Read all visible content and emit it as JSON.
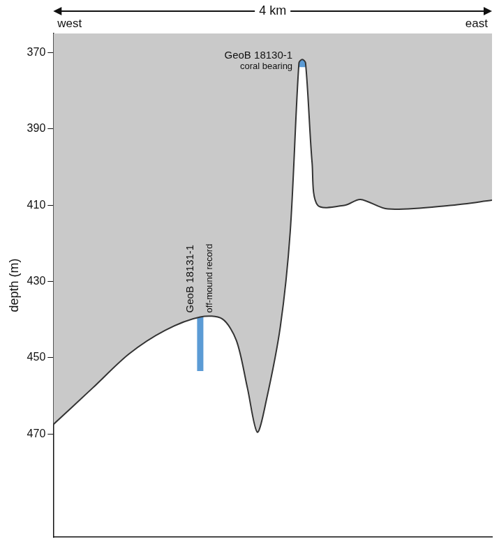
{
  "chart_data": {
    "type": "line",
    "span_label": "4 km",
    "left_label": "west",
    "right_label": "east",
    "y_label": "depth (m)",
    "x": [
      0,
      0.36,
      0.69,
      1.02,
      1.34,
      1.54,
      1.67,
      1.77,
      1.86,
      1.94,
      2.07,
      2.16,
      2.24,
      2.27,
      2.3,
      2.36,
      2.41,
      2.66,
      2.8,
      3.05,
      3.64,
      4.0
    ],
    "values": [
      467.5,
      457.9,
      449.0,
      442.8,
      439.3,
      439.8,
      445.5,
      457.9,
      469.5,
      461.5,
      441.9,
      417.1,
      372.7,
      371.8,
      372.7,
      399.0,
      410.0,
      410.0,
      408.5,
      411.0,
      410.0,
      408.7
    ],
    "color": "#333333",
    "xlim": [
      0,
      4
    ],
    "ylim": [
      365,
      497
    ],
    "yticks": [
      370,
      390,
      410,
      430,
      450,
      470
    ],
    "tick_labels": "y",
    "grid": false,
    "cores": [
      {
        "name": "GeoB 18130-1",
        "note": "coral bearing",
        "x": 2.27,
        "top": 371.8,
        "bottom": 373.8,
        "color": "#5b9bd5"
      },
      {
        "name": "GeoB 18131-1",
        "note": "off-mound record",
        "x": 1.34,
        "top": 439.3,
        "bottom": 453.5,
        "color": "#5b9bd5"
      }
    ]
  }
}
